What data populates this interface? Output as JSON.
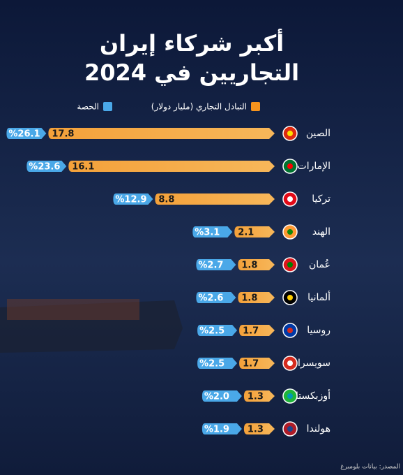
{
  "chart_data": {
    "type": "bar",
    "title": "أكبر شركاء إيران",
    "subtitle": "التجاريين في 2024",
    "categories": [
      "الصين",
      "الإمارات",
      "تركيا",
      "الهند",
      "عُمان",
      "ألمانيا",
      "روسيا",
      "سويسرا",
      "أوزبكستان",
      "هولندا"
    ],
    "series": [
      {
        "name": "التبادل التجاري (مليار دولار)",
        "color": "#f7941d",
        "values": [
          17.8,
          16.1,
          8.8,
          2.1,
          1.8,
          1.8,
          1.7,
          1.7,
          1.3,
          1.3
        ]
      },
      {
        "name": "الحصة",
        "color": "#4aa8e8",
        "values": [
          26.1,
          23.6,
          12.9,
          3.1,
          2.7,
          2.6,
          2.5,
          2.5,
          2.0,
          1.9
        ],
        "value_labels": [
          "%26.1",
          "%23.6",
          "%12.9",
          "%3.1",
          "%2.7",
          "%2.6",
          "%2.5",
          "%2.5",
          "%2.0",
          "%1.9"
        ]
      }
    ],
    "source": "المصدر: بيانات بلومبرغ"
  }
}
